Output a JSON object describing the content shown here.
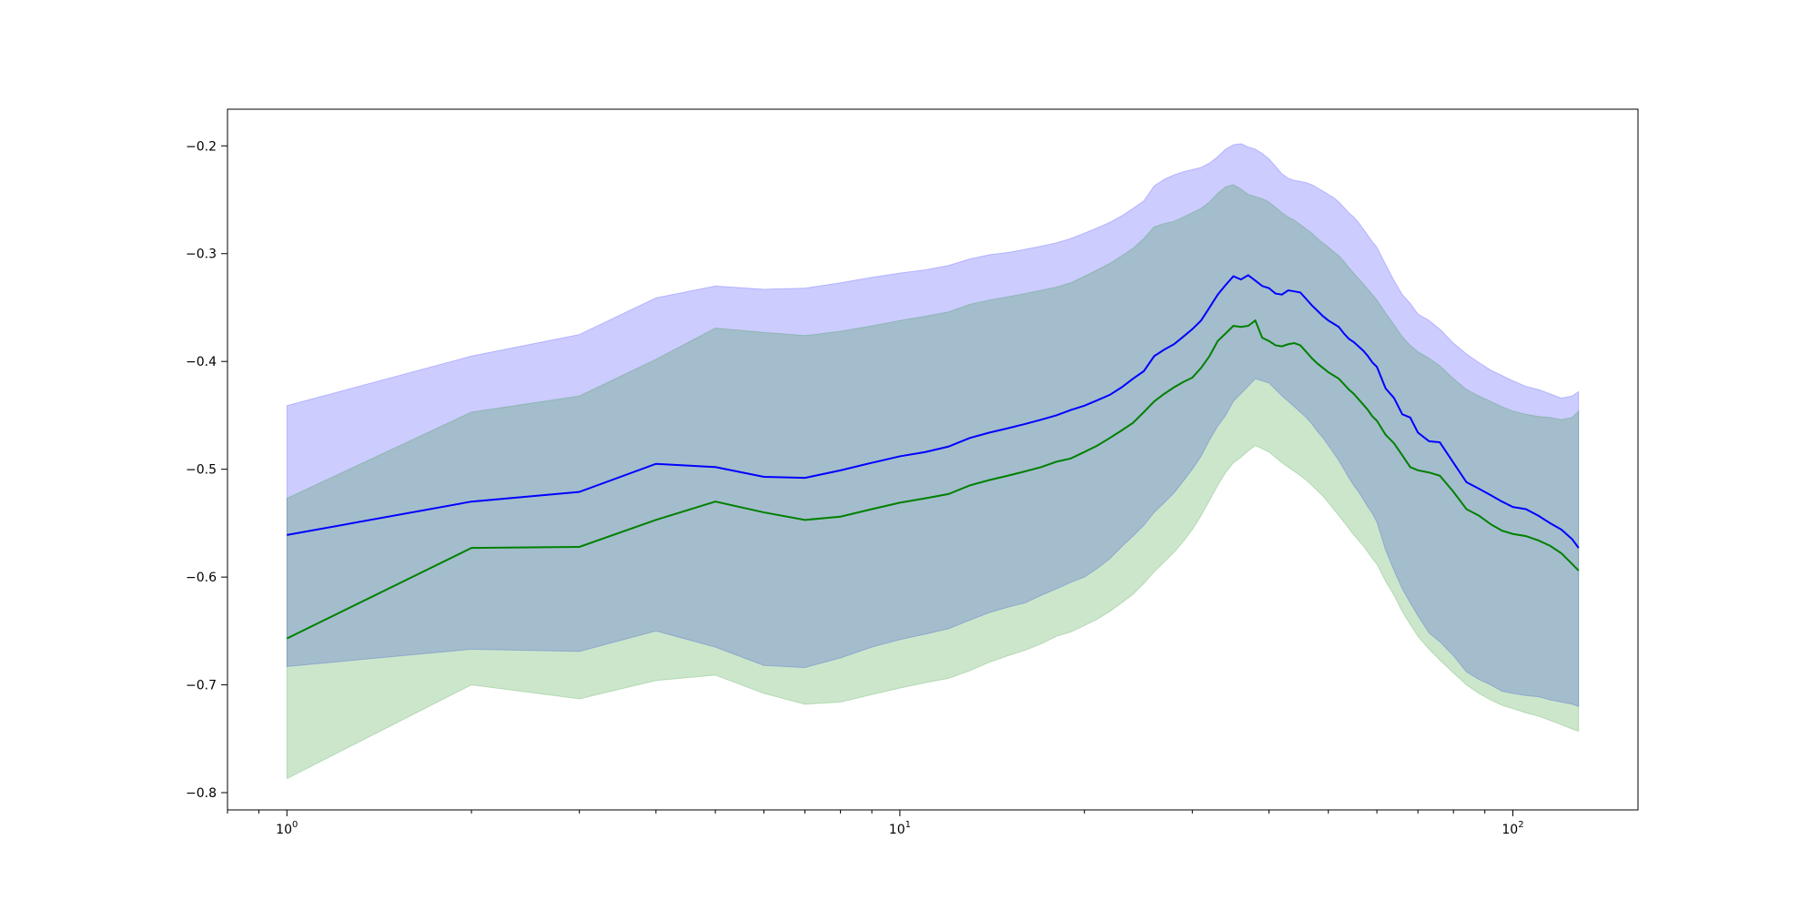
{
  "chart_data": {
    "type": "line",
    "title": "",
    "xlabel": "",
    "ylabel": "",
    "xscale": "log",
    "xlim": [
      0.8,
      160
    ],
    "ylim": [
      -0.816,
      -0.166
    ],
    "grid": false,
    "x_ticks": [
      {
        "value": 1,
        "base": "10",
        "exp": "0"
      },
      {
        "value": 10,
        "base": "10",
        "exp": "1"
      },
      {
        "value": 100,
        "base": "10",
        "exp": "2"
      }
    ],
    "y_ticks": [
      {
        "value": -0.2,
        "label": "−0.2"
      },
      {
        "value": -0.3,
        "label": "−0.3"
      },
      {
        "value": -0.4,
        "label": "−0.4"
      },
      {
        "value": -0.5,
        "label": "−0.5"
      },
      {
        "value": -0.6,
        "label": "−0.6"
      },
      {
        "value": -0.7,
        "label": "−0.7"
      },
      {
        "value": -0.8,
        "label": "−0.8"
      }
    ],
    "series": [
      {
        "color": "#0000ff",
        "band_color": "#0000ff",
        "band_opacity": 0.2,
        "x": [
          1,
          2,
          3,
          4,
          5,
          6,
          7,
          8,
          9,
          10,
          11,
          12,
          13,
          14,
          15,
          16,
          17,
          18,
          19,
          20,
          21,
          22,
          23,
          24,
          25,
          26,
          27,
          28,
          29,
          30,
          31,
          32,
          33,
          34,
          35,
          36,
          37,
          38,
          39,
          40,
          41,
          42,
          43,
          44,
          45,
          46,
          47,
          48,
          49,
          50,
          51,
          52,
          53,
          54,
          55,
          56,
          57,
          58,
          59,
          60,
          62,
          64,
          66,
          68,
          70,
          73,
          76,
          80,
          84,
          88,
          92,
          96,
          100,
          105,
          110,
          115,
          120,
          125,
          128
        ],
        "y": [
          -0.561,
          -0.53,
          -0.521,
          -0.495,
          -0.498,
          -0.507,
          -0.508,
          -0.501,
          -0.494,
          -0.488,
          -0.484,
          -0.479,
          -0.471,
          -0.466,
          -0.462,
          -0.458,
          -0.454,
          -0.45,
          -0.445,
          -0.441,
          -0.436,
          -0.431,
          -0.424,
          -0.416,
          -0.409,
          -0.395,
          -0.389,
          -0.384,
          -0.377,
          -0.37,
          -0.362,
          -0.35,
          -0.338,
          -0.329,
          -0.321,
          -0.324,
          -0.32,
          -0.325,
          -0.33,
          -0.332,
          -0.337,
          -0.338,
          -0.334,
          -0.335,
          -0.336,
          -0.342,
          -0.348,
          -0.353,
          -0.358,
          -0.362,
          -0.365,
          -0.368,
          -0.374,
          -0.379,
          -0.382,
          -0.386,
          -0.39,
          -0.395,
          -0.401,
          -0.405,
          -0.425,
          -0.434,
          -0.449,
          -0.452,
          -0.466,
          -0.474,
          -0.475,
          -0.494,
          -0.512,
          -0.518,
          -0.524,
          -0.53,
          -0.535,
          -0.537,
          -0.543,
          -0.55,
          -0.556,
          -0.565,
          -0.573
        ],
        "upper": [
          -0.441,
          -0.395,
          -0.375,
          -0.341,
          -0.33,
          -0.333,
          -0.332,
          -0.327,
          -0.322,
          -0.318,
          -0.315,
          -0.311,
          -0.305,
          -0.301,
          -0.299,
          -0.296,
          -0.293,
          -0.29,
          -0.286,
          -0.281,
          -0.276,
          -0.271,
          -0.265,
          -0.258,
          -0.251,
          -0.237,
          -0.231,
          -0.227,
          -0.224,
          -0.222,
          -0.22,
          -0.216,
          -0.21,
          -0.203,
          -0.199,
          -0.198,
          -0.201,
          -0.203,
          -0.207,
          -0.212,
          -0.219,
          -0.226,
          -0.23,
          -0.232,
          -0.233,
          -0.234,
          -0.236,
          -0.239,
          -0.242,
          -0.245,
          -0.248,
          -0.252,
          -0.257,
          -0.262,
          -0.266,
          -0.271,
          -0.277,
          -0.283,
          -0.289,
          -0.294,
          -0.31,
          -0.325,
          -0.338,
          -0.346,
          -0.356,
          -0.362,
          -0.37,
          -0.383,
          -0.393,
          -0.401,
          -0.408,
          -0.413,
          -0.418,
          -0.423,
          -0.426,
          -0.43,
          -0.434,
          -0.432,
          -0.428
        ],
        "lower": [
          -0.683,
          -0.667,
          -0.669,
          -0.65,
          -0.665,
          -0.682,
          -0.684,
          -0.675,
          -0.665,
          -0.658,
          -0.653,
          -0.648,
          -0.64,
          -0.633,
          -0.628,
          -0.624,
          -0.617,
          -0.611,
          -0.605,
          -0.6,
          -0.592,
          -0.583,
          -0.572,
          -0.562,
          -0.552,
          -0.54,
          -0.531,
          -0.522,
          -0.511,
          -0.5,
          -0.488,
          -0.473,
          -0.46,
          -0.45,
          -0.437,
          -0.43,
          -0.423,
          -0.416,
          -0.418,
          -0.42,
          -0.426,
          -0.432,
          -0.437,
          -0.442,
          -0.447,
          -0.452,
          -0.458,
          -0.465,
          -0.471,
          -0.478,
          -0.485,
          -0.492,
          -0.5,
          -0.508,
          -0.515,
          -0.521,
          -0.528,
          -0.535,
          -0.541,
          -0.549,
          -0.575,
          -0.594,
          -0.611,
          -0.624,
          -0.636,
          -0.652,
          -0.66,
          -0.673,
          -0.688,
          -0.695,
          -0.7,
          -0.706,
          -0.708,
          -0.71,
          -0.711,
          -0.714,
          -0.716,
          -0.718,
          -0.72
        ]
      },
      {
        "color": "#008000",
        "band_color": "#008000",
        "band_opacity": 0.2,
        "x": [
          1,
          2,
          3,
          4,
          5,
          6,
          7,
          8,
          9,
          10,
          11,
          12,
          13,
          14,
          15,
          16,
          17,
          18,
          19,
          20,
          21,
          22,
          23,
          24,
          25,
          26,
          27,
          28,
          29,
          30,
          31,
          32,
          33,
          34,
          35,
          36,
          37,
          38,
          39,
          40,
          41,
          42,
          43,
          44,
          45,
          46,
          47,
          48,
          49,
          50,
          51,
          52,
          53,
          54,
          55,
          56,
          57,
          58,
          59,
          60,
          62,
          64,
          66,
          68,
          70,
          73,
          76,
          80,
          84,
          88,
          92,
          96,
          100,
          105,
          110,
          115,
          120,
          125,
          128
        ],
        "y": [
          -0.657,
          -0.573,
          -0.572,
          -0.547,
          -0.53,
          -0.54,
          -0.547,
          -0.544,
          -0.537,
          -0.531,
          -0.527,
          -0.523,
          -0.515,
          -0.51,
          -0.506,
          -0.502,
          -0.498,
          -0.493,
          -0.49,
          -0.484,
          -0.478,
          -0.471,
          -0.464,
          -0.457,
          -0.447,
          -0.437,
          -0.43,
          -0.424,
          -0.419,
          -0.415,
          -0.406,
          -0.395,
          -0.381,
          -0.374,
          -0.367,
          -0.368,
          -0.367,
          -0.362,
          -0.378,
          -0.381,
          -0.385,
          -0.386,
          -0.384,
          -0.383,
          -0.385,
          -0.391,
          -0.397,
          -0.402,
          -0.406,
          -0.41,
          -0.413,
          -0.416,
          -0.421,
          -0.426,
          -0.43,
          -0.435,
          -0.44,
          -0.445,
          -0.451,
          -0.455,
          -0.468,
          -0.476,
          -0.487,
          -0.498,
          -0.501,
          -0.503,
          -0.506,
          -0.521,
          -0.537,
          -0.543,
          -0.551,
          -0.557,
          -0.56,
          -0.562,
          -0.566,
          -0.571,
          -0.578,
          -0.588,
          -0.594
        ],
        "upper": [
          -0.527,
          -0.447,
          -0.432,
          -0.398,
          -0.369,
          -0.373,
          -0.376,
          -0.372,
          -0.367,
          -0.362,
          -0.358,
          -0.354,
          -0.347,
          -0.343,
          -0.34,
          -0.337,
          -0.334,
          -0.331,
          -0.327,
          -0.321,
          -0.315,
          -0.309,
          -0.302,
          -0.295,
          -0.286,
          -0.275,
          -0.272,
          -0.27,
          -0.266,
          -0.262,
          -0.258,
          -0.252,
          -0.244,
          -0.238,
          -0.236,
          -0.24,
          -0.245,
          -0.247,
          -0.249,
          -0.252,
          -0.257,
          -0.262,
          -0.266,
          -0.269,
          -0.273,
          -0.277,
          -0.281,
          -0.286,
          -0.29,
          -0.294,
          -0.298,
          -0.302,
          -0.307,
          -0.313,
          -0.318,
          -0.323,
          -0.328,
          -0.333,
          -0.338,
          -0.343,
          -0.355,
          -0.366,
          -0.377,
          -0.385,
          -0.391,
          -0.397,
          -0.404,
          -0.416,
          -0.426,
          -0.432,
          -0.437,
          -0.442,
          -0.446,
          -0.449,
          -0.451,
          -0.452,
          -0.454,
          -0.452,
          -0.446
        ],
        "lower": [
          -0.787,
          -0.7,
          -0.713,
          -0.696,
          -0.691,
          -0.708,
          -0.718,
          -0.716,
          -0.709,
          -0.703,
          -0.698,
          -0.694,
          -0.687,
          -0.679,
          -0.673,
          -0.668,
          -0.662,
          -0.655,
          -0.651,
          -0.645,
          -0.639,
          -0.632,
          -0.624,
          -0.616,
          -0.606,
          -0.595,
          -0.586,
          -0.577,
          -0.567,
          -0.556,
          -0.543,
          -0.529,
          -0.515,
          -0.503,
          -0.494,
          -0.489,
          -0.483,
          -0.478,
          -0.481,
          -0.484,
          -0.489,
          -0.494,
          -0.498,
          -0.502,
          -0.506,
          -0.51,
          -0.515,
          -0.52,
          -0.525,
          -0.531,
          -0.537,
          -0.543,
          -0.549,
          -0.555,
          -0.561,
          -0.566,
          -0.571,
          -0.577,
          -0.583,
          -0.588,
          -0.604,
          -0.617,
          -0.632,
          -0.644,
          -0.655,
          -0.667,
          -0.677,
          -0.689,
          -0.7,
          -0.708,
          -0.714,
          -0.719,
          -0.722,
          -0.726,
          -0.729,
          -0.733,
          -0.737,
          -0.741,
          -0.743
        ]
      }
    ]
  }
}
